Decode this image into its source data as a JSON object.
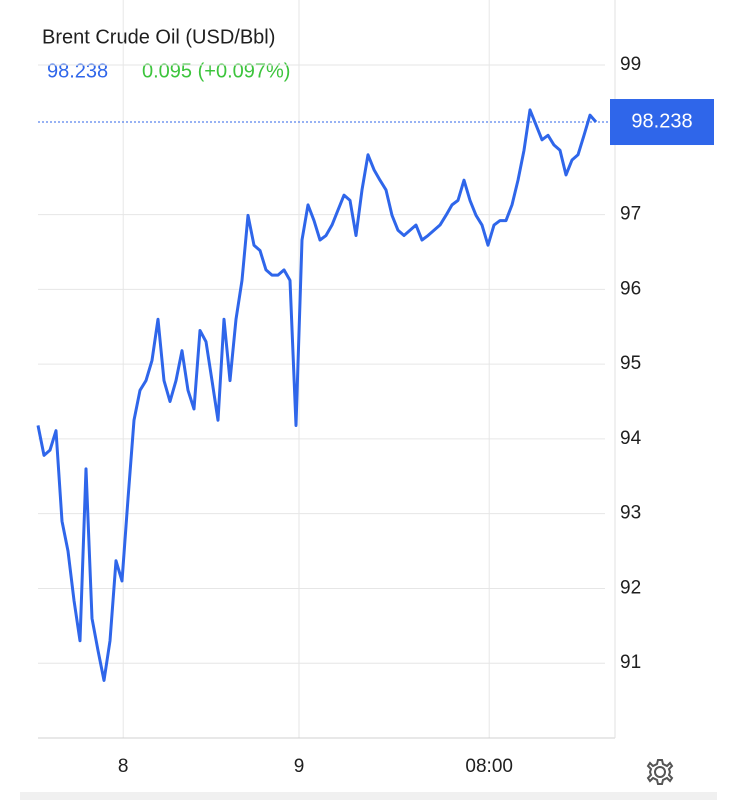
{
  "chart_data": {
    "type": "line",
    "title": "Brent Crude Oil (USD/Bbl)",
    "last_price": 98.238,
    "change": "0.095 (+0.097%)",
    "series": [
      {
        "name": "Brent Crude Oil",
        "color": "#2f66ea",
        "values": [
          94.18,
          93.78,
          93.85,
          94.11,
          92.9,
          92.5,
          91.84,
          91.3,
          93.6,
          91.6,
          91.17,
          90.77,
          91.3,
          92.37,
          92.1,
          93.2,
          94.25,
          94.65,
          94.78,
          95.05,
          95.6,
          94.78,
          94.5,
          94.78,
          95.18,
          94.65,
          94.4,
          95.45,
          95.3,
          94.78,
          94.25,
          95.6,
          94.78,
          95.6,
          96.12,
          96.99,
          96.59,
          96.52,
          96.26,
          96.19,
          96.19,
          96.26,
          96.12,
          94.18,
          96.66,
          97.13,
          96.92,
          96.66,
          96.72,
          96.86,
          97.06,
          97.26,
          97.19,
          96.72,
          97.33,
          97.8,
          97.6,
          97.46,
          97.33,
          96.99,
          96.79,
          96.72,
          96.79,
          96.86,
          96.66,
          96.72,
          96.79,
          96.86,
          96.99,
          97.13,
          97.19,
          97.46,
          97.19,
          96.99,
          96.86,
          96.59,
          96.86,
          96.92,
          96.92,
          97.13,
          97.46,
          97.86,
          98.4,
          98.2,
          98.0,
          98.06,
          97.93,
          97.86,
          97.53,
          97.73,
          97.8,
          98.06,
          98.33,
          98.238
        ]
      }
    ],
    "xlim": [
      0,
      94.5
    ],
    "xticks": [
      {
        "value": 14.2,
        "label": "8"
      },
      {
        "value": 43.5,
        "label": "9"
      },
      {
        "value": 75.2,
        "label": "08:00"
      }
    ],
    "ylim": [
      90,
      99.7
    ],
    "yticks": [
      91,
      92,
      93,
      94,
      95,
      96,
      97,
      99
    ],
    "grid": true
  }
}
